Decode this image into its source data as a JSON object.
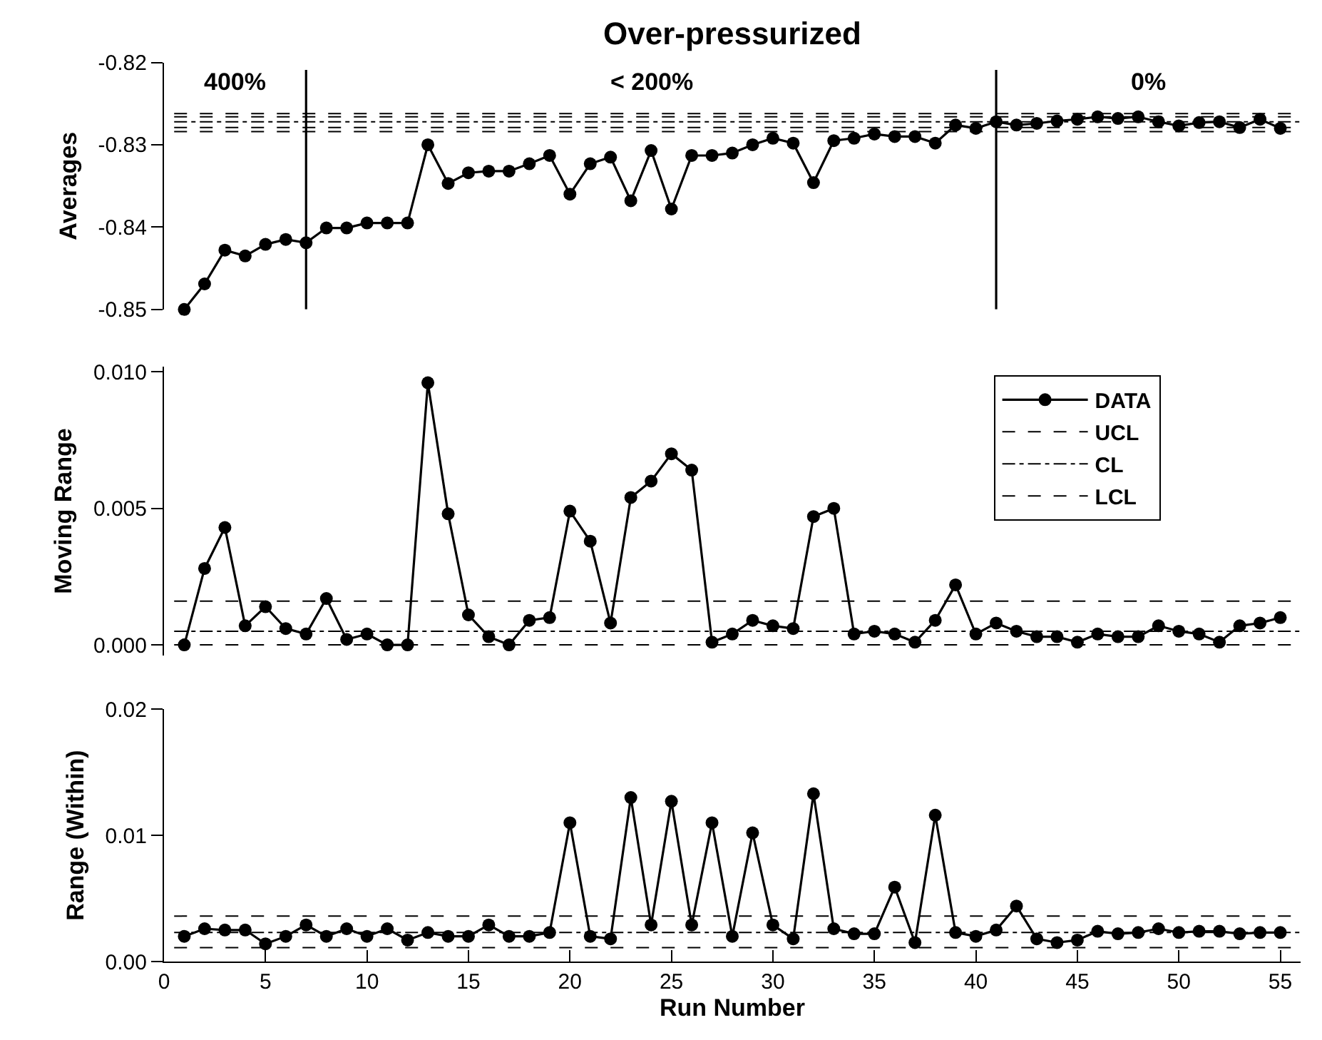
{
  "chart_data": [
    {
      "type": "line",
      "title": "Over-pressurized",
      "ylabel": "Averages",
      "x": [
        1,
        2,
        3,
        4,
        5,
        6,
        7,
        8,
        9,
        10,
        11,
        12,
        13,
        14,
        15,
        16,
        17,
        18,
        19,
        20,
        21,
        22,
        23,
        24,
        25,
        26,
        27,
        28,
        29,
        30,
        31,
        32,
        33,
        34,
        35,
        36,
        37,
        38,
        39,
        40,
        41,
        42,
        43,
        44,
        45,
        46,
        47,
        48,
        49,
        50,
        51,
        52,
        53,
        54,
        55
      ],
      "series": [
        {
          "color": "#000000",
          "values": [
            -0.85,
            -0.8469,
            -0.8428,
            -0.8435,
            -0.8421,
            -0.8415,
            -0.8419,
            -0.8401,
            -0.8401,
            -0.8395,
            -0.8395,
            -0.8395,
            -0.83,
            -0.8347,
            -0.8334,
            -0.8332,
            -0.8332,
            -0.8323,
            -0.8313,
            -0.836,
            -0.8323,
            -0.8315,
            -0.8368,
            -0.8307,
            -0.8378,
            -0.8313,
            -0.8313,
            -0.831,
            -0.83,
            -0.8292,
            -0.8298,
            -0.8346,
            -0.8295,
            -0.8292,
            -0.8287,
            -0.829,
            -0.829,
            -0.8298,
            -0.8276,
            -0.828,
            -0.8272,
            -0.8276,
            -0.8274,
            -0.8271,
            -0.8269,
            -0.8266,
            -0.8268,
            -0.8266,
            -0.8272,
            -0.8277,
            -0.8273,
            -0.8272,
            -0.8279,
            -0.8269,
            -0.828
          ]
        }
      ],
      "xlim": [
        0,
        56
      ],
      "xticks": [
        0,
        5,
        10,
        15,
        20,
        25,
        30,
        35,
        40,
        45,
        50,
        55
      ],
      "ylim": [
        -0.85,
        -0.82
      ],
      "yticks": [
        -0.85,
        -0.84,
        -0.83,
        -0.82
      ],
      "tick_labels": "y",
      "legend": false,
      "marker": "circle",
      "line_style": "solid",
      "ref_lines": [
        {
          "axis": "y",
          "value": -0.8262,
          "color": "#000000",
          "line_style": "dashed"
        },
        {
          "axis": "y",
          "value": -0.8266,
          "color": "#000000",
          "line_style": "dashed"
        },
        {
          "axis": "y",
          "value": -0.8272,
          "color": "#000000",
          "line_style": "dashdot"
        },
        {
          "axis": "y",
          "value": -0.8279,
          "color": "#000000",
          "line_style": "dashed"
        },
        {
          "axis": "y",
          "value": -0.8284,
          "color": "#000000",
          "line_style": "dashed"
        },
        {
          "axis": "x",
          "value": 7,
          "color": "#000000",
          "line_style": "solid"
        },
        {
          "axis": "x",
          "value": 41,
          "color": "#000000",
          "line_style": "solid"
        }
      ],
      "annotations": [
        "400%",
        "< 200%",
        "0%"
      ]
    },
    {
      "type": "line",
      "ylabel": "Moving Range",
      "x": [
        1,
        2,
        3,
        4,
        5,
        6,
        7,
        8,
        9,
        10,
        11,
        12,
        13,
        14,
        15,
        16,
        17,
        18,
        19,
        20,
        21,
        22,
        23,
        24,
        25,
        26,
        27,
        28,
        29,
        30,
        31,
        32,
        33,
        34,
        35,
        36,
        37,
        38,
        39,
        40,
        41,
        42,
        43,
        44,
        45,
        46,
        47,
        48,
        49,
        50,
        51,
        52,
        53,
        54,
        55
      ],
      "series": [
        {
          "name": "DATA",
          "color": "#000000",
          "values": [
            0.0,
            0.0028,
            0.0043,
            0.0007,
            0.0014,
            0.0006,
            0.0004,
            0.0017,
            0.0002,
            0.0004,
            0.0,
            0.0,
            0.0096,
            0.0048,
            0.0011,
            0.0003,
            0.0,
            0.0009,
            0.001,
            0.0049,
            0.0038,
            0.0008,
            0.0054,
            0.006,
            0.007,
            0.0064,
            0.0001,
            0.0004,
            0.0009,
            0.0007,
            0.0006,
            0.0047,
            0.005,
            0.0004,
            0.0005,
            0.0004,
            0.0001,
            0.0009,
            0.0022,
            0.0004,
            0.0008,
            0.0005,
            0.0003,
            0.0003,
            0.0001,
            0.0004,
            0.0003,
            0.0003,
            0.0007,
            0.0005,
            0.0004,
            0.0001,
            0.0007,
            0.0008,
            0.001
          ]
        }
      ],
      "xlim": [
        0,
        56
      ],
      "xticks": [
        0,
        5,
        10,
        15,
        20,
        25,
        30,
        35,
        40,
        45,
        50,
        55
      ],
      "ylim": [
        -0.0004,
        0.0102
      ],
      "yticks": [
        {
          "value": 0.0,
          "label": "0.000"
        },
        {
          "value": 0.005,
          "label": "0.005"
        },
        {
          "value": 0.01,
          "label": "0.010"
        }
      ],
      "tick_labels": "y",
      "legend": "top right",
      "marker": "circle",
      "line_style": "solid",
      "ref_lines": [
        {
          "axis": "y",
          "value": 0.0016,
          "label": "UCL",
          "color": "#000000",
          "line_style": "dashed"
        },
        {
          "axis": "y",
          "value": 0.0005,
          "label": "CL",
          "color": "#000000",
          "line_style": "dashdot"
        },
        {
          "axis": "y",
          "value": 0.0,
          "label": "LCL",
          "color": "#000000",
          "line_style": "dashed"
        }
      ]
    },
    {
      "type": "line",
      "xlabel": "Run Number",
      "ylabel": "Range (Within)",
      "x": [
        1,
        2,
        3,
        4,
        5,
        6,
        7,
        8,
        9,
        10,
        11,
        12,
        13,
        14,
        15,
        16,
        17,
        18,
        19,
        20,
        21,
        22,
        23,
        24,
        25,
        26,
        27,
        28,
        29,
        30,
        31,
        32,
        33,
        34,
        35,
        36,
        37,
        38,
        39,
        40,
        41,
        42,
        43,
        44,
        45,
        46,
        47,
        48,
        49,
        50,
        51,
        52,
        53,
        54,
        55
      ],
      "series": [
        {
          "color": "#000000",
          "values": [
            0.002,
            0.0026,
            0.0025,
            0.0025,
            0.0014,
            0.002,
            0.0029,
            0.002,
            0.0026,
            0.002,
            0.0026,
            0.0017,
            0.0023,
            0.002,
            0.002,
            0.0029,
            0.002,
            0.002,
            0.0023,
            0.011,
            0.002,
            0.0018,
            0.013,
            0.0029,
            0.0127,
            0.0029,
            0.011,
            0.002,
            0.0102,
            0.0029,
            0.0018,
            0.0133,
            0.0026,
            0.0022,
            0.0022,
            0.0059,
            0.0015,
            0.0116,
            0.0023,
            0.002,
            0.0025,
            0.0044,
            0.0018,
            0.0015,
            0.0017,
            0.0024,
            0.0022,
            0.0023,
            0.0026,
            0.0023,
            0.0024,
            0.0024,
            0.0022,
            0.0023,
            0.0023
          ]
        }
      ],
      "xlim": [
        0,
        56
      ],
      "xticks": [
        0,
        5,
        10,
        15,
        20,
        25,
        30,
        35,
        40,
        45,
        50,
        55
      ],
      "ylim": [
        0,
        0.02
      ],
      "yticks": [
        {
          "value": 0.0,
          "label": "0.00"
        },
        {
          "value": 0.01,
          "label": "0.01"
        },
        {
          "value": 0.02,
          "label": "0.02"
        }
      ],
      "legend": false,
      "marker": "circle",
      "line_style": "solid",
      "ref_lines": [
        {
          "axis": "y",
          "value": 0.0036,
          "color": "#000000",
          "line_style": "dashed"
        },
        {
          "axis": "y",
          "value": 0.0023,
          "color": "#000000",
          "line_style": "dashdot"
        },
        {
          "axis": "y",
          "value": 0.0011,
          "color": "#000000",
          "line_style": "dashed"
        }
      ]
    }
  ]
}
